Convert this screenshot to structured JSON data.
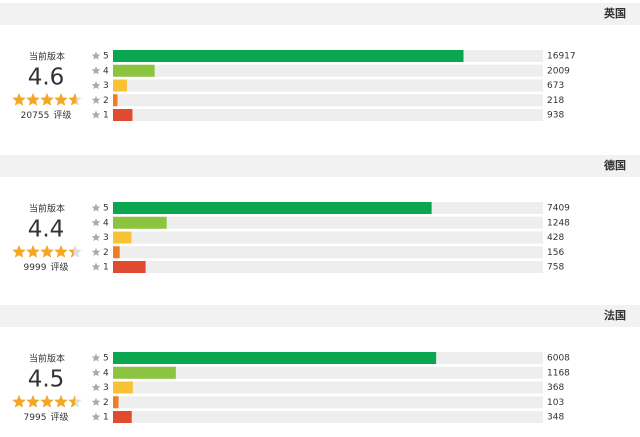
{
  "version_label": "当前版本",
  "count_unit": "评级",
  "star_levels": [
    "5",
    "4",
    "3",
    "2",
    "1"
  ],
  "bar_colors": [
    "#0aa650",
    "#8cc43f",
    "#f9c234",
    "#ef7d22",
    "#e04a2f"
  ],
  "panels": [
    {
      "country": "英国",
      "score": 4.6,
      "total": 20755,
      "counts": [
        16917,
        2009,
        673,
        218,
        938
      ]
    },
    {
      "country": "德国",
      "score": 4.4,
      "total": 9999,
      "counts": [
        7409,
        1248,
        428,
        156,
        758
      ]
    },
    {
      "country": "法国",
      "score": 4.5,
      "total": 7995,
      "counts": [
        6008,
        1168,
        368,
        103,
        348
      ]
    }
  ]
}
